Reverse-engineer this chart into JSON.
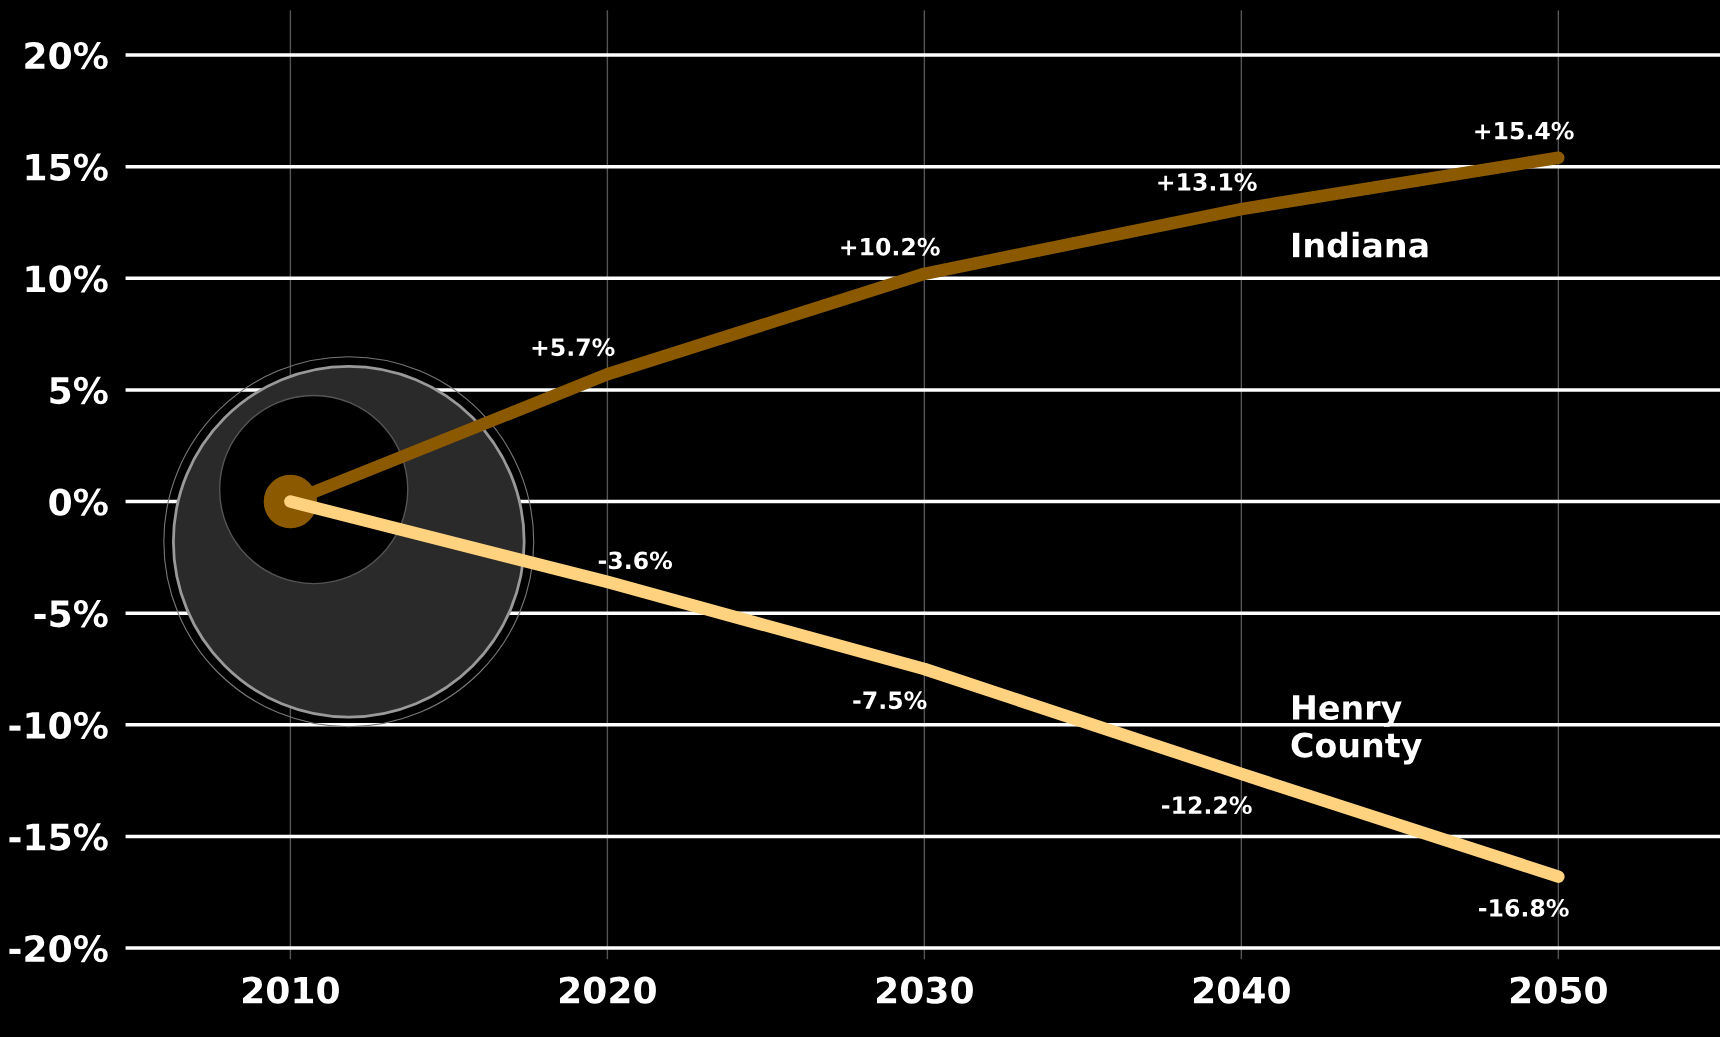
{
  "chart_data": {
    "type": "line",
    "x": [
      2010,
      2020,
      2030,
      2040,
      2050
    ],
    "series": [
      {
        "name": "Indiana",
        "color": "#8b5a00",
        "values": [
          0,
          5.7,
          10.2,
          13.1,
          15.4
        ],
        "value_labels": [
          null,
          "+5.7%",
          "+10.2%",
          "+13.1%",
          "+15.4%"
        ]
      },
      {
        "name": "Henry\nCounty",
        "color": "#ffd27f",
        "values": [
          0,
          -3.6,
          -7.5,
          -12.2,
          -16.8
        ],
        "value_labels": [
          null,
          "-3.6%",
          "-7.5%",
          "-12.2%",
          "-16.8%"
        ]
      },
      {
        "type": "scatter",
        "x": [
          2010
        ],
        "color": "#8b5a00",
        "values": [
          0
        ],
        "marker": "circle"
      }
    ],
    "xlim": [
      2004.8,
      2055.1
    ],
    "ylim": [
      -20.5,
      22
    ],
    "xticks": [
      2010,
      2020,
      2030,
      2040,
      2050
    ],
    "yticks": [
      {
        "value": 20,
        "label": "20%"
      },
      {
        "value": 15,
        "label": "15%"
      },
      {
        "value": 10,
        "label": "10%"
      },
      {
        "value": 5,
        "label": "5%"
      },
      {
        "value": 0,
        "label": "0%"
      },
      {
        "value": -5,
        "label": "-5%"
      },
      {
        "value": -10,
        "label": "-10%"
      },
      {
        "value": -15,
        "label": "-15%"
      },
      {
        "value": -20,
        "label": "-20%"
      }
    ],
    "grid": true,
    "marker": "none",
    "line_style": "solid"
  }
}
